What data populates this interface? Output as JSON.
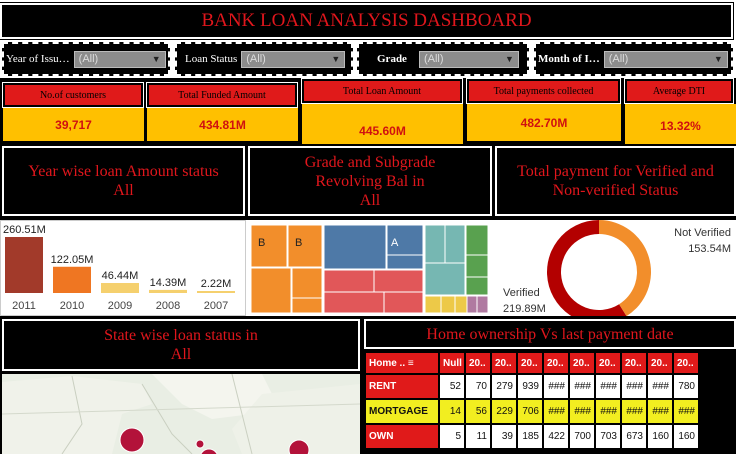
{
  "dashboard_title": "BANK LOAN ANALYSIS DASHBOARD",
  "filters": [
    {
      "label": "Year of Issu…",
      "value": "(All)"
    },
    {
      "label": "Loan Status",
      "value": "(All)"
    },
    {
      "label": "Grade",
      "value": "(All)"
    },
    {
      "label": "Month of I…",
      "value": "(All)"
    }
  ],
  "kpis": [
    {
      "label": "No.of customers",
      "value": "39,717"
    },
    {
      "label": "Total Funded Amount",
      "value": "434.81M"
    },
    {
      "label": "Total Loan Amount",
      "value": "445.60M"
    },
    {
      "label": "Total payments collected",
      "value": "482.70M"
    },
    {
      "label": "Average DTI",
      "value": "13.32%"
    }
  ],
  "sections": {
    "year_wise": {
      "line1": "Year wise loan Amount status",
      "line2": "All"
    },
    "grade": {
      "line1": "Grade and Subgrade",
      "line2": "Revolving Bal in",
      "line3": "All"
    },
    "payment": {
      "line1": "Total payment for Verified and",
      "line2": "Non-verified Status"
    },
    "state": {
      "line1": "State wise loan status in",
      "line2": "All"
    },
    "home": {
      "line1": "Home ownership Vs last payment date"
    }
  },
  "chart_data": [
    {
      "type": "bar",
      "categories": [
        "2011",
        "2010",
        "2009",
        "2008",
        "2007"
      ],
      "values": [
        260.51,
        122.05,
        46.44,
        14.39,
        2.22
      ],
      "labels": [
        "260.51M",
        "122.05M",
        "46.44M",
        "14.39M",
        "2.22M"
      ],
      "colors": [
        "#a23a2a",
        "#ef7622",
        "#f5d06e",
        "#f5d06e",
        "#f5d06e"
      ]
    },
    {
      "type": "pie",
      "slices": [
        {
          "name": "Not Verified",
          "value": 153.54,
          "label": "153.54M",
          "color": "#f28e2b"
        },
        {
          "name": "Verified",
          "value": 219.89,
          "label": "219.89M",
          "color": "#b30000"
        }
      ]
    }
  ],
  "treemap_labels": [
    "B",
    "B",
    "A"
  ],
  "home_table": {
    "header": [
      "Home ..",
      "Null",
      "20..",
      "20..",
      "20..",
      "20..",
      "20..",
      "20..",
      "20..",
      "20..",
      "20.."
    ],
    "rows": [
      {
        "name": "RENT",
        "cells": [
          "52",
          "70",
          "279",
          "939",
          "###",
          "###",
          "###",
          "###",
          "###",
          "780"
        ]
      },
      {
        "name": "MORTGAGE",
        "cells": [
          "14",
          "56",
          "229",
          "706",
          "###",
          "###",
          "###",
          "###",
          "###",
          "###"
        ]
      },
      {
        "name": "OWN",
        "cells": [
          "5",
          "11",
          "39",
          "185",
          "422",
          "700",
          "703",
          "673",
          "160",
          "160"
        ]
      }
    ]
  },
  "colors": {
    "accent_red": "#e01a1a",
    "kpi_yellow": "#ffc000",
    "highlight_yellow": "#f2ee20"
  }
}
